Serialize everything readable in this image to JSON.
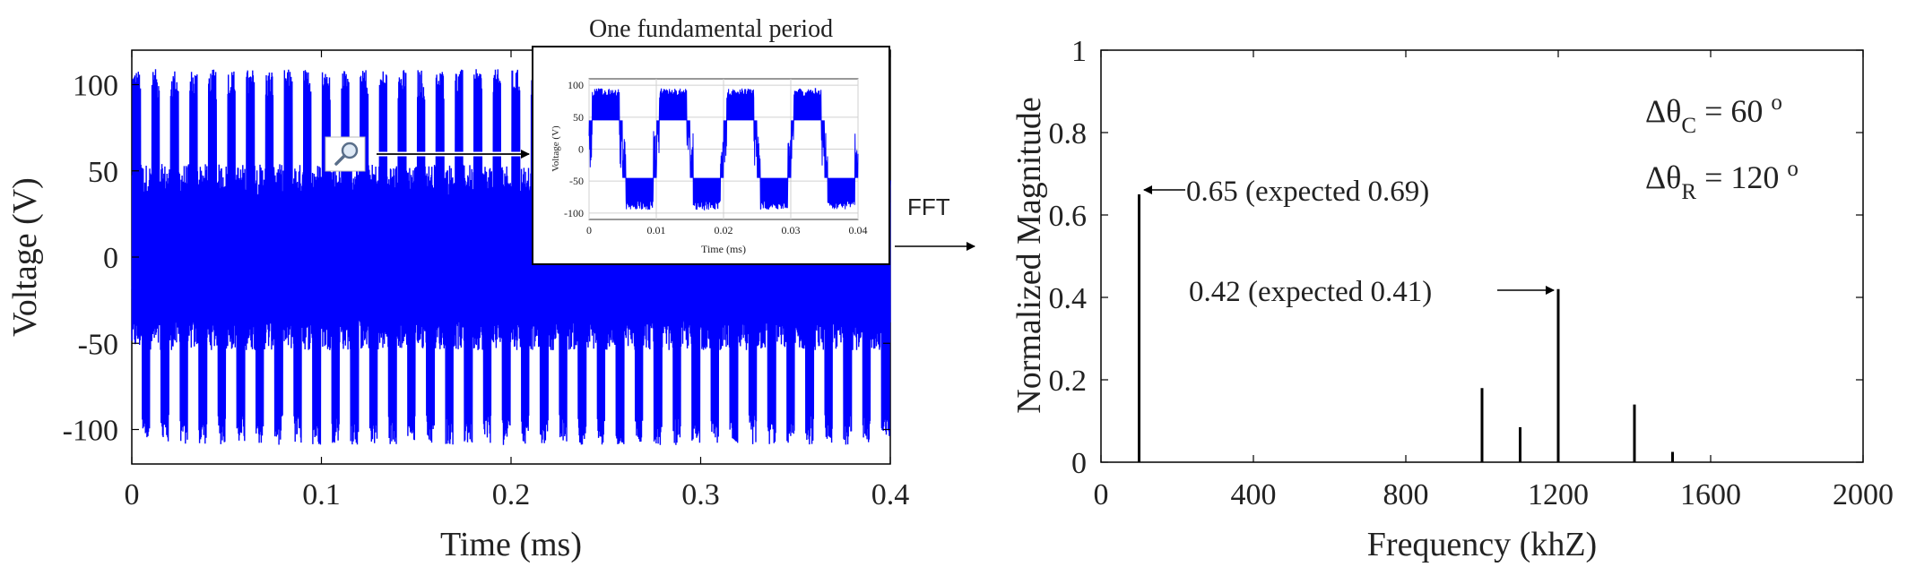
{
  "chart_data": [
    {
      "type": "line",
      "xlabel": "Time (ms)",
      "ylabel": "Voltage (V)",
      "xlim": [
        0,
        0.4
      ],
      "ylim": [
        -120,
        120
      ],
      "x_ticks": [
        "0",
        "0.1",
        "0.2",
        "0.3",
        "0.4"
      ],
      "y_ticks": [
        "100",
        "50",
        "0",
        "-50",
        "-100"
      ],
      "series_color": "#0000ff",
      "signal": {
        "fundamental_period_ms": 0.01,
        "amplitude_levels_V": [
          -100,
          -45,
          0,
          45,
          100
        ],
        "peak_V": 110
      },
      "grid": false
    },
    {
      "type": "line",
      "title": "One fundamental period",
      "xlabel": "Time (ms)",
      "ylabel": "Voltage (V)",
      "xlim": [
        0,
        0.04
      ],
      "ylim": [
        -110,
        110
      ],
      "x_ticks": [
        "0",
        "0.01",
        "0.02",
        "0.03",
        "0.04"
      ],
      "y_ticks": [
        "100",
        "50",
        "0",
        "-50",
        "-100"
      ],
      "series_color": "#0000ff",
      "grid": true
    },
    {
      "type": "bar",
      "xlabel": "Frequency (khZ)",
      "ylabel": "Normalized Magnitude",
      "xlim": [
        0,
        2000
      ],
      "ylim": [
        0,
        1
      ],
      "x_ticks": [
        "0",
        "400",
        "800",
        "1200",
        "1600",
        "2000"
      ],
      "y_ticks": [
        "0",
        "0.2",
        "0.4",
        "0.6",
        "0.8",
        "1"
      ],
      "x": [
        100,
        1000,
        1100,
        1200,
        1400,
        1500
      ],
      "values": [
        0.65,
        0.18,
        0.085,
        0.42,
        0.14,
        0.025
      ],
      "bar_color": "#000000",
      "annotations": [
        {
          "text": "0.65 (expected 0.69)",
          "x": 100,
          "y": 0.65
        },
        {
          "text": "0.42 (expected 0.41)",
          "x": 1200,
          "y": 0.42
        }
      ],
      "params": [
        {
          "delta": "Δθ",
          "sub": "C",
          "rest": " = 60 ",
          "sup": "o"
        },
        {
          "delta": "Δθ",
          "sub": "R",
          "rest": " = 120 ",
          "sup": "o"
        }
      ]
    }
  ],
  "link_label": "FFT",
  "magnifier_icon": "magnifier-icon"
}
